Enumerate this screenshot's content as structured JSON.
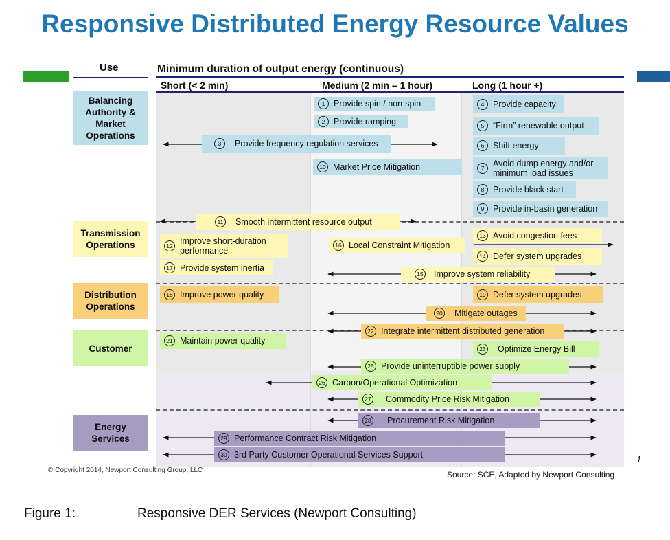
{
  "title": "Responsive Distributed Energy Resource Values",
  "use_label": "Use",
  "duration_header": "Minimum duration of output energy (continuous)",
  "columns": {
    "short": "Short (< 2 min)",
    "medium": "Medium (2 min – 1 hour)",
    "long": "Long (1 hour +)"
  },
  "categories": {
    "balancing": "Balancing Authority & Market Operations",
    "transmission": "Transmission Operations",
    "distribution": "Distribution Operations",
    "customer": "Customer",
    "energy": "Energy Services"
  },
  "services": [
    {
      "n": "1",
      "label": "Provide spin / non-spin"
    },
    {
      "n": "2",
      "label": "Provide ramping"
    },
    {
      "n": "3",
      "label": "Provide frequency regulation services"
    },
    {
      "n": "4",
      "label": "Provide capacity"
    },
    {
      "n": "5",
      "label": "“Firm” renewable output"
    },
    {
      "n": "6",
      "label": "Shift energy"
    },
    {
      "n": "7",
      "label": "Avoid dump energy and/or minimum load issues"
    },
    {
      "n": "8",
      "label": "Provide black start"
    },
    {
      "n": "9",
      "label": "Provide in-basin generation"
    },
    {
      "n": "10",
      "label": "Market Price Mitigation"
    },
    {
      "n": "11",
      "label": "Smooth intermittent resource output"
    },
    {
      "n": "12",
      "label": "Improve short-duration performance"
    },
    {
      "n": "13",
      "label": "Avoid congestion fees"
    },
    {
      "n": "14",
      "label": "Defer system upgrades"
    },
    {
      "n": "15",
      "label": "Improve system reliability"
    },
    {
      "n": "16",
      "label": "Local Constraint Mitigation"
    },
    {
      "n": "17",
      "label": "Provide system inertia"
    },
    {
      "n": "18",
      "label": "Improve power quality"
    },
    {
      "n": "19",
      "label": "Defer system upgrades"
    },
    {
      "n": "20",
      "label": "Mitigate outages"
    },
    {
      "n": "21",
      "label": "Maintain power quality"
    },
    {
      "n": "22",
      "label": "Integrate intermittent distributed generation"
    },
    {
      "n": "23",
      "label": "Optimize Energy Bill"
    },
    {
      "n": "25",
      "label": "Provide uninterruptible power supply"
    },
    {
      "n": "26",
      "label": "Carbon/Operational Optimization"
    },
    {
      "n": "27",
      "label": "Commodity Price Risk Mitigation"
    },
    {
      "n": "28",
      "label": "Procurement Risk Mitigation"
    },
    {
      "n": "29",
      "label": "Performance Contract Risk Mitigation"
    },
    {
      "n": "30",
      "label": "3rd Party Customer Operational Services Support"
    }
  ],
  "page_number": "1",
  "copyright": "© Copyright 2014, Newport Consulting Group, LLC",
  "source": "Source: SCE, Adapted by Newport Consulting",
  "caption_label": "Figure 1:",
  "caption_text": "Responsive DER Services (Newport Consulting)",
  "colors": {
    "title": "#1f78b4",
    "accent_green": "#2ca02c",
    "accent_blue": "#1f5f99",
    "navy": "#1c2473",
    "blue_box": "#bddfea",
    "yellow_box": "#fdf6b4",
    "orange_box": "#f9d07a",
    "green_box": "#cff5a5",
    "purple_box": "#a79dc3"
  }
}
